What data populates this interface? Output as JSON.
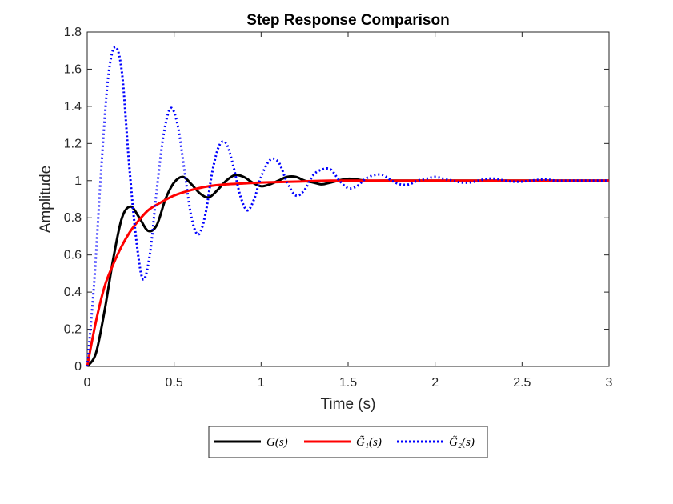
{
  "chart_data": {
    "type": "line",
    "title": "Step Response Comparison",
    "xlabel": "Time (s)",
    "ylabel": "Amplitude",
    "xlim": [
      0,
      3
    ],
    "ylim": [
      0,
      1.8
    ],
    "xticks": [
      0,
      0.5,
      1,
      1.5,
      2,
      2.5,
      3
    ],
    "xtick_labels": [
      "0",
      "0.5",
      "1",
      "1.5",
      "2",
      "2.5",
      "3"
    ],
    "yticks": [
      0,
      0.2,
      0.4,
      0.6,
      0.8,
      1,
      1.2,
      1.4,
      1.6,
      1.8
    ],
    "ytick_labels": [
      "0",
      "0.2",
      "0.4",
      "0.6",
      "0.8",
      "1",
      "1.2",
      "1.4",
      "1.6",
      "1.8"
    ],
    "grid": false,
    "legend_position": "bottom-center-outside",
    "series": [
      {
        "name": "G(s)",
        "label": "G(s)",
        "color": "#000000",
        "style": "solid",
        "x": [
          0,
          0.05,
          0.1,
          0.15,
          0.2,
          0.25,
          0.3,
          0.35,
          0.4,
          0.45,
          0.5,
          0.55,
          0.6,
          0.65,
          0.7,
          0.75,
          0.8,
          0.85,
          0.9,
          0.95,
          1.0,
          1.05,
          1.1,
          1.15,
          1.2,
          1.25,
          1.3,
          1.35,
          1.4,
          1.5,
          1.6,
          1.7,
          1.8,
          2.0,
          2.2,
          2.5,
          3.0
        ],
        "values": [
          0,
          0.07,
          0.3,
          0.58,
          0.8,
          0.86,
          0.8,
          0.73,
          0.76,
          0.9,
          0.99,
          1.02,
          0.98,
          0.93,
          0.91,
          0.95,
          1.0,
          1.03,
          1.02,
          0.99,
          0.97,
          0.98,
          1.0,
          1.02,
          1.02,
          1.0,
          0.99,
          0.98,
          0.99,
          1.01,
          1.0,
          1.0,
          1.0,
          1.0,
          1.0,
          1.0,
          1.0
        ]
      },
      {
        "name": "G1~(s)",
        "label": "G̃₁(s)",
        "color": "#ff0000",
        "style": "solid",
        "x": [
          0,
          0.05,
          0.1,
          0.15,
          0.2,
          0.25,
          0.3,
          0.35,
          0.4,
          0.5,
          0.6,
          0.7,
          0.8,
          0.9,
          1.0,
          1.2,
          1.4,
          1.6,
          1.8,
          2.0,
          2.5,
          3.0
        ],
        "values": [
          0,
          0.24,
          0.43,
          0.55,
          0.65,
          0.73,
          0.79,
          0.84,
          0.87,
          0.92,
          0.95,
          0.97,
          0.98,
          0.985,
          0.99,
          0.995,
          1.0,
          1.0,
          1.0,
          1.0,
          1.0,
          1.0
        ]
      },
      {
        "name": "G2~(s)",
        "label": "G̃₂(s)",
        "color": "#0000ff",
        "style": "dotted",
        "x": [
          0,
          0.04,
          0.08,
          0.12,
          0.16,
          0.2,
          0.24,
          0.28,
          0.32,
          0.36,
          0.4,
          0.44,
          0.48,
          0.52,
          0.56,
          0.6,
          0.64,
          0.68,
          0.72,
          0.76,
          0.8,
          0.84,
          0.88,
          0.92,
          0.96,
          1.0,
          1.05,
          1.1,
          1.15,
          1.2,
          1.25,
          1.3,
          1.35,
          1.4,
          1.45,
          1.5,
          1.55,
          1.6,
          1.65,
          1.7,
          1.75,
          1.8,
          1.85,
          1.9,
          1.95,
          2.0,
          2.05,
          2.1,
          2.15,
          2.2,
          2.25,
          2.3,
          2.35,
          2.4,
          2.45,
          2.5,
          2.55,
          2.6,
          2.65,
          2.7,
          2.8,
          2.9,
          3.0
        ],
        "values": [
          0,
          0.45,
          1.05,
          1.55,
          1.72,
          1.58,
          1.1,
          0.7,
          0.47,
          0.6,
          0.95,
          1.25,
          1.39,
          1.3,
          1.05,
          0.8,
          0.71,
          0.82,
          1.05,
          1.19,
          1.2,
          1.08,
          0.92,
          0.84,
          0.9,
          1.02,
          1.11,
          1.1,
          0.99,
          0.92,
          0.95,
          1.03,
          1.06,
          1.06,
          1.0,
          0.96,
          0.97,
          1.01,
          1.03,
          1.03,
          1.0,
          0.98,
          0.98,
          1.0,
          1.01,
          1.02,
          1.01,
          1.0,
          0.99,
          0.99,
          1.0,
          1.01,
          1.01,
          1.0,
          0.995,
          0.995,
          1.0,
          1.005,
          1.005,
          1.0,
          1.0,
          1.0,
          1.0
        ]
      }
    ]
  }
}
